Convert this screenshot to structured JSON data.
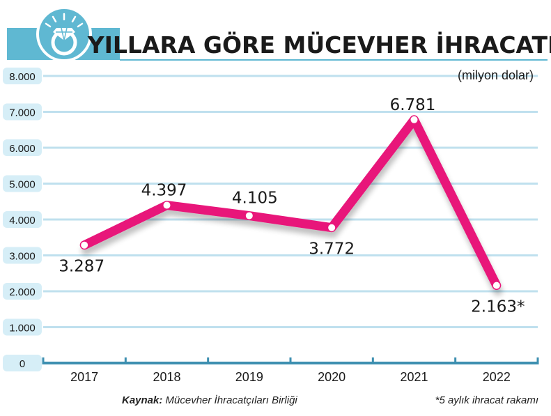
{
  "header": {
    "title": "YILLARA GÖRE MÜCEVHER İHRACATI",
    "icon": "diamond-ring-icon"
  },
  "unit_label": "(milyon dolar)",
  "footer": {
    "source_label": "Kaynak:",
    "source_value": "Mücevher İhracatçıları Birliği",
    "note": "*5 aylık ihracat rakamı"
  },
  "colors": {
    "line": "#e8197a",
    "grid_band": "#bfe0ee",
    "header_band": "#5fb8d2",
    "axis": "#3d8fb0",
    "label_bg": "#d6eef7"
  },
  "chart_data": {
    "type": "line",
    "categories": [
      "2017",
      "2018",
      "2019",
      "2020",
      "2021",
      "2022"
    ],
    "values": [
      3287,
      4397,
      4105,
      3772,
      6781,
      2163
    ],
    "data_labels": [
      "3.287",
      "4.397",
      "4.105",
      "3.772",
      "6.781",
      "2.163*"
    ],
    "y_ticks": [
      {
        "value": 0,
        "label": "0"
      },
      {
        "value": 1000,
        "label": "1.000"
      },
      {
        "value": 2000,
        "label": "2.000"
      },
      {
        "value": 3000,
        "label": "3.000"
      },
      {
        "value": 4000,
        "label": "4.000"
      },
      {
        "value": 5000,
        "label": "5.000"
      },
      {
        "value": 6000,
        "label": "6.000"
      },
      {
        "value": 7000,
        "label": "7.000"
      },
      {
        "value": 8000,
        "label": "8.000"
      }
    ],
    "ylim": [
      0,
      8000
    ],
    "grid": true
  }
}
